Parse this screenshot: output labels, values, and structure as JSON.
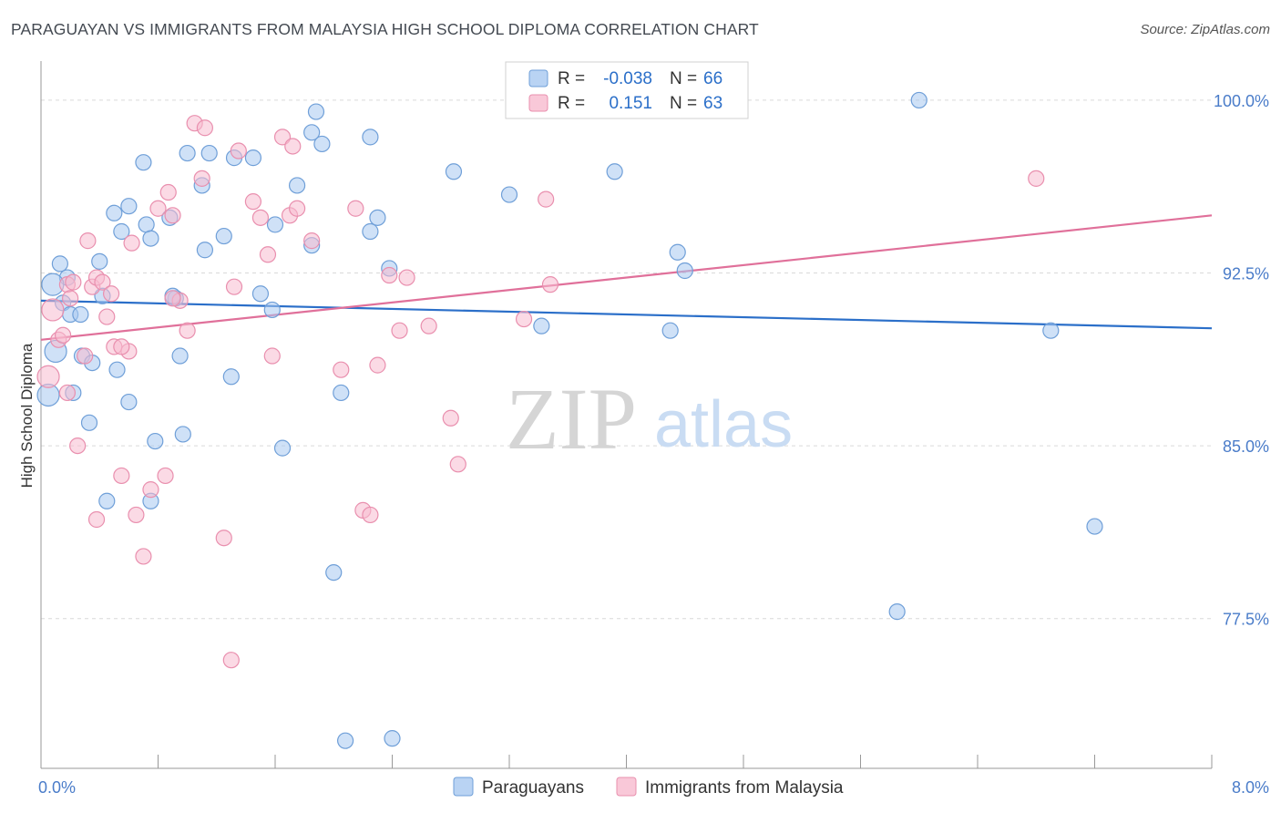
{
  "title": "PARAGUAYAN VS IMMIGRANTS FROM MALAYSIA HIGH SCHOOL DIPLOMA CORRELATION CHART",
  "source": "Source: ZipAtlas.com",
  "watermark": {
    "zip": "ZIP",
    "atlas": "atlas"
  },
  "colors": {
    "blue_fill": "#a8c8f0",
    "blue_stroke": "#6f9fd8",
    "blue_line": "#2b6fc9",
    "pink_fill": "#f7bcd0",
    "pink_stroke": "#e98fae",
    "pink_line": "#e0709a",
    "tick_text": "#4a7cc9",
    "grid": "#d9d9d9"
  },
  "chart_data": {
    "type": "scatter",
    "ylabel": "High School Diploma",
    "xlabel": "",
    "xlim": [
      0,
      8
    ],
    "ylim": [
      71.0,
      101.5
    ],
    "x_tick_labels": [
      {
        "value": 0,
        "label": "0.0%"
      },
      {
        "value": 8,
        "label": "8.0%"
      }
    ],
    "y_ticks": [
      {
        "value": 100.0,
        "label": "100.0%"
      },
      {
        "value": 92.5,
        "label": "92.5%"
      },
      {
        "value": 85.0,
        "label": "85.0%"
      },
      {
        "value": 77.5,
        "label": "77.5%"
      }
    ],
    "legend_bottom": [
      "Paraguayans",
      "Immigrants from Malaysia"
    ],
    "stats_box": [
      {
        "r_label": "R =",
        "r": "-0.038",
        "n_label": "N =",
        "n": "66"
      },
      {
        "r_label": "R =",
        "r": "0.151",
        "n_label": "N =",
        "n": "63"
      }
    ],
    "series": [
      {
        "name": "Paraguayans",
        "color": "blue",
        "trend": {
          "x0": 0,
          "y0": 91.3,
          "x1": 8,
          "y1": 90.1
        },
        "points": [
          [
            0.05,
            87.2
          ],
          [
            0.1,
            89.1
          ],
          [
            0.13,
            92.9
          ],
          [
            0.15,
            91.2
          ],
          [
            0.18,
            92.3
          ],
          [
            0.2,
            90.7
          ],
          [
            0.22,
            87.3
          ],
          [
            0.27,
            90.7
          ],
          [
            0.28,
            88.9
          ],
          [
            0.33,
            86.0
          ],
          [
            0.35,
            88.6
          ],
          [
            0.4,
            93.0
          ],
          [
            0.42,
            91.5
          ],
          [
            0.5,
            95.1
          ],
          [
            0.52,
            88.3
          ],
          [
            0.55,
            94.3
          ],
          [
            0.6,
            86.9
          ],
          [
            0.6,
            95.4
          ],
          [
            0.7,
            97.3
          ],
          [
            0.72,
            94.6
          ],
          [
            0.75,
            94.0
          ],
          [
            0.78,
            85.2
          ],
          [
            0.88,
            94.9
          ],
          [
            0.92,
            91.4
          ],
          [
            0.95,
            88.9
          ],
          [
            0.97,
            85.5
          ],
          [
            1.0,
            97.7
          ],
          [
            1.1,
            96.3
          ],
          [
            1.12,
            93.5
          ],
          [
            1.15,
            97.7
          ],
          [
            1.25,
            94.1
          ],
          [
            1.32,
            97.5
          ],
          [
            1.45,
            97.5
          ],
          [
            1.5,
            91.6
          ],
          [
            1.58,
            90.9
          ],
          [
            1.6,
            94.6
          ],
          [
            1.65,
            84.9
          ],
          [
            1.75,
            96.3
          ],
          [
            1.85,
            98.6
          ],
          [
            1.85,
            93.7
          ],
          [
            1.88,
            99.5
          ],
          [
            1.92,
            98.1
          ],
          [
            2.0,
            79.5
          ],
          [
            2.05,
            87.3
          ],
          [
            2.08,
            72.2
          ],
          [
            2.25,
            98.4
          ],
          [
            2.25,
            94.3
          ],
          [
            2.3,
            94.9
          ],
          [
            2.38,
            92.7
          ],
          [
            2.4,
            72.3
          ],
          [
            2.82,
            96.9
          ],
          [
            3.2,
            95.9
          ],
          [
            3.42,
            90.2
          ],
          [
            3.92,
            96.9
          ],
          [
            4.3,
            90.0
          ],
          [
            4.35,
            93.4
          ],
          [
            4.4,
            92.6
          ],
          [
            5.85,
            77.8
          ],
          [
            6.0,
            100.0
          ],
          [
            6.9,
            90.0
          ],
          [
            7.2,
            81.5
          ],
          [
            0.9,
            91.5
          ],
          [
            1.3,
            88.0
          ],
          [
            0.08,
            92.0
          ],
          [
            0.45,
            82.6
          ],
          [
            0.75,
            82.6
          ]
        ]
      },
      {
        "name": "Immigrants from Malaysia",
        "color": "pink",
        "trend": {
          "x0": 0,
          "y0": 89.6,
          "x1": 8,
          "y1": 95.0
        },
        "points": [
          [
            0.05,
            88.0
          ],
          [
            0.08,
            90.9
          ],
          [
            0.12,
            89.6
          ],
          [
            0.15,
            89.8
          ],
          [
            0.18,
            92.0
          ],
          [
            0.2,
            91.4
          ],
          [
            0.22,
            92.1
          ],
          [
            0.25,
            85.0
          ],
          [
            0.3,
            88.9
          ],
          [
            0.32,
            93.9
          ],
          [
            0.35,
            91.9
          ],
          [
            0.38,
            92.3
          ],
          [
            0.42,
            92.1
          ],
          [
            0.45,
            90.6
          ],
          [
            0.48,
            91.6
          ],
          [
            0.5,
            89.3
          ],
          [
            0.55,
            83.7
          ],
          [
            0.6,
            89.1
          ],
          [
            0.62,
            93.8
          ],
          [
            0.65,
            82.0
          ],
          [
            0.7,
            80.2
          ],
          [
            0.75,
            83.1
          ],
          [
            0.8,
            95.3
          ],
          [
            0.85,
            83.7
          ],
          [
            0.87,
            96.0
          ],
          [
            0.9,
            95.0
          ],
          [
            0.95,
            91.3
          ],
          [
            1.0,
            90.0
          ],
          [
            1.05,
            99.0
          ],
          [
            1.1,
            96.6
          ],
          [
            1.12,
            98.8
          ],
          [
            1.25,
            81.0
          ],
          [
            1.3,
            75.7
          ],
          [
            1.32,
            91.9
          ],
          [
            1.35,
            97.8
          ],
          [
            1.45,
            95.6
          ],
          [
            1.55,
            93.3
          ],
          [
            1.58,
            88.9
          ],
          [
            1.65,
            98.4
          ],
          [
            1.7,
            95.0
          ],
          [
            1.72,
            98.0
          ],
          [
            1.75,
            95.3
          ],
          [
            1.85,
            93.9
          ],
          [
            2.05,
            88.3
          ],
          [
            2.15,
            95.3
          ],
          [
            2.2,
            82.2
          ],
          [
            2.25,
            82.0
          ],
          [
            2.3,
            88.5
          ],
          [
            2.38,
            92.4
          ],
          [
            2.45,
            90.0
          ],
          [
            2.5,
            92.3
          ],
          [
            2.65,
            90.2
          ],
          [
            2.8,
            86.2
          ],
          [
            2.85,
            84.2
          ],
          [
            3.3,
            90.5
          ],
          [
            3.45,
            95.7
          ],
          [
            3.48,
            92.0
          ],
          [
            6.8,
            96.6
          ],
          [
            0.38,
            81.8
          ],
          [
            0.18,
            87.3
          ],
          [
            0.55,
            89.3
          ],
          [
            0.9,
            91.4
          ],
          [
            1.5,
            94.9
          ]
        ]
      }
    ]
  }
}
